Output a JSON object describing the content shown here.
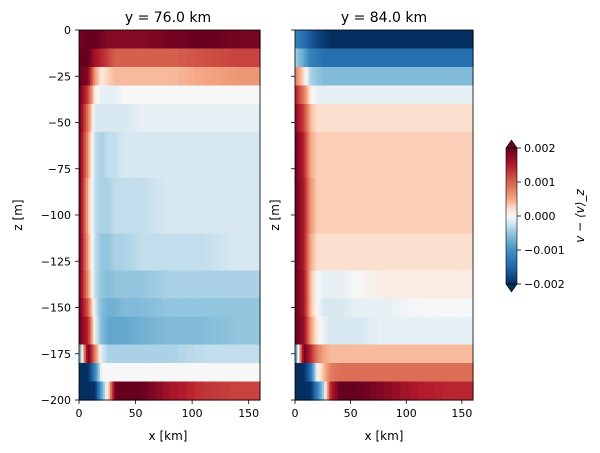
{
  "chart_data": [
    {
      "type": "heatmap",
      "title": "y = 76.0 km",
      "xlabel": "x [km]",
      "ylabel": "z [m]",
      "xlim": [
        0,
        160
      ],
      "ylim": [
        -200,
        0
      ],
      "xticks": [
        "0",
        "50",
        "100",
        "150"
      ],
      "yticks": [
        "0",
        "−25",
        "−50",
        "−75",
        "−100",
        "−125",
        "−150",
        "−175",
        "−200"
      ],
      "colormap": "RdBu_r",
      "vmin": -0.002,
      "vmax": 0.002,
      "x_profile": [
        0,
        8,
        14,
        20,
        26,
        32,
        40,
        55,
        80,
        110,
        140,
        160
      ],
      "rows": [
        {
          "z_top": 0,
          "z_bottom": -10,
          "values": [
            0.0019,
            0.002,
            0.002,
            0.0019,
            0.0018,
            0.0018,
            0.0018,
            0.0018,
            0.0019,
            0.002,
            0.0019,
            0.0019
          ]
        },
        {
          "z_top": -10,
          "z_bottom": -20,
          "values": [
            0.002,
            0.002,
            0.0016,
            0.0014,
            0.0012,
            0.001,
            0.001,
            0.001,
            0.001,
            0.0011,
            0.0012,
            0.0012
          ]
        },
        {
          "z_top": -20,
          "z_bottom": -30,
          "values": [
            0.002,
            0.0018,
            0.0006,
            0.0001,
            0.0003,
            0.0004,
            0.0004,
            0.0004,
            0.0004,
            0.0005,
            0.0006,
            0.0006
          ]
        },
        {
          "z_top": -30,
          "z_bottom": -40,
          "values": [
            0.002,
            0.0012,
            0.0001,
            -0.0001,
            -0.0001,
            -0.0001,
            0.0,
            0.0,
            0.0,
            0.0,
            0.0,
            0.0
          ]
        },
        {
          "z_top": -40,
          "z_bottom": -55,
          "values": [
            0.002,
            0.0008,
            -0.0002,
            -0.0002,
            -0.0002,
            -0.0002,
            -0.0002,
            -0.0001,
            -0.0001,
            -0.0001,
            -0.0001,
            -0.0001
          ]
        },
        {
          "z_top": -55,
          "z_bottom": -80,
          "values": [
            0.002,
            0.0006,
            -0.0003,
            -0.0004,
            -0.0003,
            -0.0003,
            -0.0002,
            -0.0002,
            -0.0002,
            -0.0002,
            -0.0002,
            -0.0002
          ]
        },
        {
          "z_top": -80,
          "z_bottom": -110,
          "values": [
            0.002,
            0.0004,
            -0.0003,
            -0.0004,
            -0.0004,
            -0.0003,
            -0.0003,
            -0.0003,
            -0.0002,
            -0.0002,
            -0.0002,
            -0.0002
          ]
        },
        {
          "z_top": -110,
          "z_bottom": -130,
          "values": [
            0.002,
            0.0005,
            -0.0003,
            -0.0005,
            -0.0005,
            -0.0004,
            -0.0004,
            -0.0003,
            -0.0003,
            -0.0003,
            -0.0002,
            -0.0002
          ]
        },
        {
          "z_top": -130,
          "z_bottom": -145,
          "values": [
            0.002,
            0.0006,
            -0.0003,
            -0.0005,
            -0.0006,
            -0.0005,
            -0.0005,
            -0.0005,
            -0.0004,
            -0.0004,
            -0.0004,
            -0.0004
          ]
        },
        {
          "z_top": -145,
          "z_bottom": -155,
          "values": [
            0.002,
            0.001,
            -0.0002,
            -0.0006,
            -0.0007,
            -0.0007,
            -0.0006,
            -0.0006,
            -0.0005,
            -0.0005,
            -0.0005,
            -0.0005
          ]
        },
        {
          "z_top": -155,
          "z_bottom": -170,
          "values": [
            0.002,
            0.0014,
            -0.0001,
            -0.0006,
            -0.0008,
            -0.0008,
            -0.0008,
            -0.0007,
            -0.0006,
            -0.0006,
            -0.0005,
            -0.0005
          ]
        },
        {
          "z_top": -170,
          "z_bottom": -180,
          "values": [
            -0.001,
            0.002,
            0.0008,
            -0.0002,
            -0.0004,
            -0.0004,
            -0.0004,
            -0.0004,
            -0.0004,
            -0.0003,
            -0.0003,
            -0.0003
          ]
        },
        {
          "z_top": -180,
          "z_bottom": -190,
          "values": [
            -0.002,
            -0.002,
            -0.0012,
            0.0,
            0.0,
            0.0,
            0.0,
            0.0,
            0.0,
            0.0,
            0.0,
            0.0
          ]
        },
        {
          "z_top": -190,
          "z_bottom": -200,
          "values": [
            -0.002,
            -0.002,
            -0.002,
            -0.0008,
            0.0002,
            0.002,
            0.002,
            0.002,
            0.0016,
            0.0013,
            0.0012,
            0.0012
          ]
        }
      ]
    },
    {
      "type": "heatmap",
      "title": "y = 84.0 km",
      "xlabel": "x [km]",
      "ylabel": "z [m]",
      "xlim": [
        0,
        160
      ],
      "ylim": [
        -200,
        0
      ],
      "xticks": [
        "0",
        "50",
        "100",
        "150"
      ],
      "colormap": "RdBu_r",
      "vmin": -0.002,
      "vmax": 0.002,
      "x_profile": [
        0,
        8,
        14,
        20,
        26,
        32,
        40,
        55,
        80,
        110,
        140,
        160
      ],
      "rows": [
        {
          "z_top": 0,
          "z_bottom": -10,
          "values": [
            -0.0012,
            -0.0014,
            -0.0016,
            -0.0018,
            -0.0019,
            -0.002,
            -0.002,
            -0.002,
            -0.002,
            -0.002,
            -0.002,
            -0.002
          ]
        },
        {
          "z_top": -10,
          "z_bottom": -20,
          "values": [
            -0.0004,
            -0.0008,
            -0.0012,
            -0.0013,
            -0.0014,
            -0.0014,
            -0.0014,
            -0.0014,
            -0.0014,
            -0.0014,
            -0.0014,
            -0.0014
          ]
        },
        {
          "z_top": -20,
          "z_bottom": -30,
          "values": [
            0.0008,
            0.0002,
            -0.0004,
            -0.0005,
            -0.0006,
            -0.0006,
            -0.0006,
            -0.0006,
            -0.0006,
            -0.0006,
            -0.0006,
            -0.0006
          ]
        },
        {
          "z_top": -30,
          "z_bottom": -40,
          "values": [
            0.0015,
            0.0008,
            0.0001,
            -0.0001,
            -0.0001,
            -0.0001,
            -0.0001,
            -0.0001,
            -0.0001,
            -0.0001,
            -0.0001,
            -0.0001
          ]
        },
        {
          "z_top": -40,
          "z_bottom": -55,
          "values": [
            0.0018,
            0.0012,
            0.0004,
            0.0002,
            0.0002,
            0.0002,
            0.0002,
            0.0002,
            0.0002,
            0.0002,
            0.0002,
            0.0002
          ]
        },
        {
          "z_top": -55,
          "z_bottom": -80,
          "values": [
            0.002,
            0.0014,
            0.0005,
            0.0003,
            0.0003,
            0.0003,
            0.0003,
            0.0003,
            0.0003,
            0.0003,
            0.0003,
            0.0003
          ]
        },
        {
          "z_top": -80,
          "z_bottom": -110,
          "values": [
            0.002,
            0.0015,
            0.0006,
            0.0003,
            0.0003,
            0.0003,
            0.0003,
            0.0003,
            0.0003,
            0.0003,
            0.0003,
            0.0003
          ]
        },
        {
          "z_top": -110,
          "z_bottom": -130,
          "values": [
            0.002,
            0.0015,
            0.0005,
            0.0002,
            0.0002,
            0.0002,
            0.0002,
            0.0002,
            0.0002,
            0.0002,
            0.0002,
            0.0002
          ]
        },
        {
          "z_top": -130,
          "z_bottom": -145,
          "values": [
            0.002,
            0.0016,
            0.0004,
            0.0,
            -0.0001,
            -0.0001,
            -0.0001,
            0.0,
            0.0001,
            0.0001,
            0.0001,
            0.0001
          ]
        },
        {
          "z_top": -145,
          "z_bottom": -155,
          "values": [
            0.002,
            0.0016,
            0.0004,
            0.0,
            -0.0002,
            -0.0002,
            -0.0002,
            -0.0001,
            -0.0001,
            0.0,
            0.0,
            0.0
          ]
        },
        {
          "z_top": -155,
          "z_bottom": -170,
          "values": [
            0.002,
            0.0017,
            0.0006,
            0.0001,
            -0.0001,
            -0.0002,
            -0.0002,
            -0.0002,
            -0.0001,
            -0.0001,
            -0.0001,
            -0.0001
          ]
        },
        {
          "z_top": -170,
          "z_bottom": -180,
          "values": [
            -0.0012,
            0.002,
            0.0014,
            0.0008,
            0.0005,
            0.0004,
            0.0004,
            0.0004,
            0.0004,
            0.0004,
            0.0004,
            0.0004
          ]
        },
        {
          "z_top": -180,
          "z_bottom": -190,
          "values": [
            -0.002,
            -0.002,
            -0.0014,
            0.0,
            0.0004,
            0.0008,
            0.0009,
            0.0009,
            0.0009,
            0.0009,
            0.0009,
            0.0009
          ]
        },
        {
          "z_top": -190,
          "z_bottom": -200,
          "values": [
            -0.002,
            -0.002,
            -0.002,
            -0.0012,
            -0.0004,
            0.0014,
            0.002,
            0.002,
            0.0018,
            0.0015,
            0.0014,
            0.0014
          ]
        }
      ]
    }
  ],
  "colorbar": {
    "label": "v − ⟨v⟩_z",
    "vmin": -0.002,
    "vmax": 0.002,
    "ticks": [
      "0.002",
      "0.001",
      "0.000",
      "−0.001",
      "−0.002"
    ],
    "extend": "both"
  }
}
